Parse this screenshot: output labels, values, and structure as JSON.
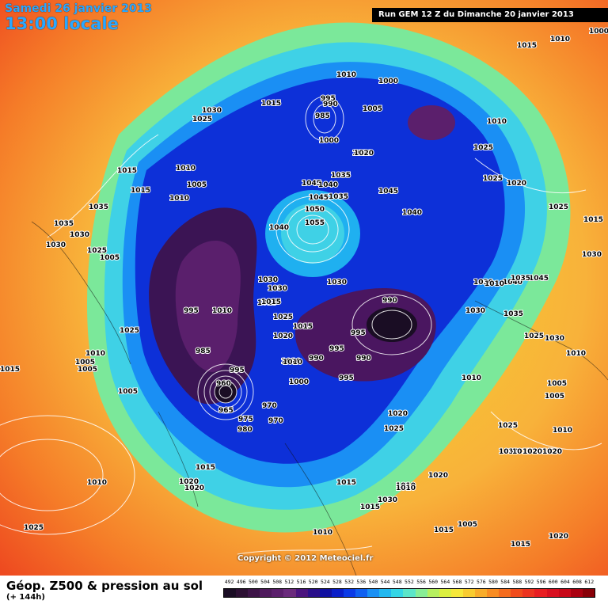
{
  "header": {
    "date": "Samedi 26 janvier 2013",
    "time": "13:00 locale",
    "run": "Run GEM 12 Z du Dimanche 20 janvier 2013"
  },
  "copyright": "Copyright © 2012 Meteociel.fr",
  "footer": {
    "title": "Géop. Z500 & pression au sol",
    "subtitle": "(+ 144h)"
  },
  "scale": {
    "labels": [
      "492",
      "496",
      "500",
      "504",
      "508",
      "512",
      "516",
      "520",
      "524",
      "528",
      "532",
      "536",
      "540",
      "544",
      "548",
      "552",
      "556",
      "560",
      "564",
      "568",
      "572",
      "576",
      "580",
      "584",
      "588",
      "592",
      "596",
      "600",
      "604",
      "608",
      "612"
    ],
    "colors": [
      "#1a0d24",
      "#2c1033",
      "#3d1447",
      "#4e1a5c",
      "#5b1f6c",
      "#6a2a7c",
      "#4a137e",
      "#2a0f8a",
      "#1010a0",
      "#0a1ec8",
      "#0b3ae6",
      "#1060f0",
      "#1a90f4",
      "#22b8f0",
      "#35d6e6",
      "#5ce6c9",
      "#88ee96",
      "#b6f060",
      "#dcf040",
      "#f6e83a",
      "#f8cc30",
      "#f8ac2a",
      "#f88c22",
      "#f46c1e",
      "#f04c1c",
      "#ec3420",
      "#e81e22",
      "#d81020",
      "#c80818",
      "#aa0010",
      "#880008"
    ]
  },
  "map": {
    "pressure_labels": [
      "1000",
      "1010",
      "1015",
      "1000",
      "1010",
      "1015",
      "1005",
      "1010",
      "1025",
      "1030",
      "1015",
      "995",
      "990",
      "985",
      "1000",
      "1005",
      "1020",
      "1045",
      "1035",
      "1040",
      "1045",
      "1050",
      "1055",
      "1040",
      "1045",
      "1040",
      "1030",
      "1020",
      "1025",
      "1010",
      "1010",
      "1015",
      "1025",
      "1035",
      "1015",
      "1000",
      "1005",
      "1010",
      "1015",
      "1030",
      "1035",
      "1025",
      "1030",
      "1035",
      "1030",
      "1025",
      "1020",
      "1005",
      "1040",
      "1045",
      "1030",
      "1010",
      "1035",
      "1030",
      "1015",
      "1025",
      "1030",
      "995",
      "1010",
      "1010",
      "1020",
      "1030",
      "1015",
      "1025",
      "1030",
      "1035",
      "995",
      "990",
      "985",
      "1025",
      "1010",
      "1000",
      "990",
      "995",
      "990",
      "995",
      "995",
      "1015",
      "1005",
      "1010",
      "960",
      "965",
      "975",
      "980",
      "970",
      "970",
      "1010",
      "1005",
      "1020",
      "1025",
      "1020",
      "1015",
      "1020",
      "1015",
      "1025",
      "1010",
      "1025",
      "1020",
      "1030",
      "1015",
      "1020",
      "1005",
      "1010",
      "1015",
      "1025",
      "1030",
      "1015",
      "1015",
      "1015",
      "1010",
      "1010",
      "1015",
      "1005",
      "1010",
      "1005",
      "1010",
      "1020",
      "1020",
      "1020",
      "1020",
      "1025"
    ]
  },
  "colors": {
    "run_box_bg": "#000000",
    "header_text": "#2aa7ff"
  }
}
